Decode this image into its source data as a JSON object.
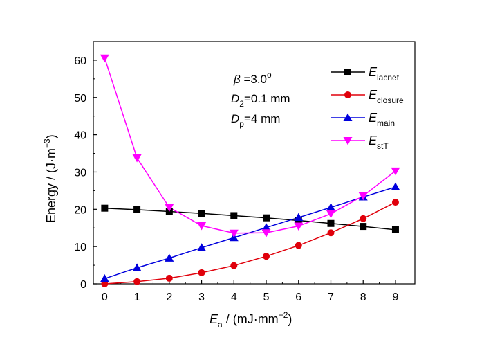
{
  "chart_data": {
    "type": "line",
    "x": [
      0,
      1,
      2,
      3,
      4,
      5,
      6,
      7,
      8,
      9
    ],
    "xlim": [
      -0.35,
      9.6
    ],
    "ylim": [
      0,
      65
    ],
    "xticks": [
      0,
      1,
      2,
      3,
      4,
      5,
      6,
      7,
      8,
      9
    ],
    "yticks": [
      0,
      10,
      20,
      30,
      40,
      50,
      60
    ],
    "xlabel": {
      "main": "E",
      "sub": "a",
      "rest": " / (mJ·mm",
      "sup": "−2",
      "end": ")"
    },
    "ylabel": {
      "main": "Energy / (J·m",
      "sup": "−3",
      "end": ")"
    },
    "grid": false,
    "legend_position": "top-right",
    "annotations": [
      {
        "main": "β",
        "sub": "",
        "rest": " =3.0",
        "sup": "o"
      },
      {
        "main": "D",
        "sub": "2",
        "rest": "=0.1 mm",
        "sup": ""
      },
      {
        "main": "D",
        "sub": "p",
        "rest": "=4 mm",
        "sup": ""
      }
    ],
    "series": [
      {
        "name": "E",
        "sub": "lacnet",
        "color": "#000000",
        "marker": "square",
        "values": [
          20.3,
          19.9,
          19.4,
          18.9,
          18.3,
          17.7,
          17.0,
          16.2,
          15.4,
          14.5
        ]
      },
      {
        "name": "E",
        "sub": "closure",
        "color": "#e0000b",
        "marker": "circle",
        "values": [
          0.0,
          0.6,
          1.5,
          3.0,
          4.9,
          7.4,
          10.3,
          13.7,
          17.5,
          21.9
        ]
      },
      {
        "name": "E",
        "sub": "main",
        "color": "#0000dd",
        "marker": "triangle-up",
        "values": [
          1.4,
          4.3,
          6.9,
          9.7,
          12.4,
          15.1,
          17.8,
          20.5,
          23.3,
          26.0
        ]
      },
      {
        "name": "E",
        "sub": "stT",
        "color": "#ff00ff",
        "marker": "triangle-down",
        "values": [
          60.6,
          33.8,
          20.5,
          15.6,
          13.6,
          13.7,
          15.5,
          18.8,
          23.6,
          30.3
        ]
      }
    ]
  }
}
